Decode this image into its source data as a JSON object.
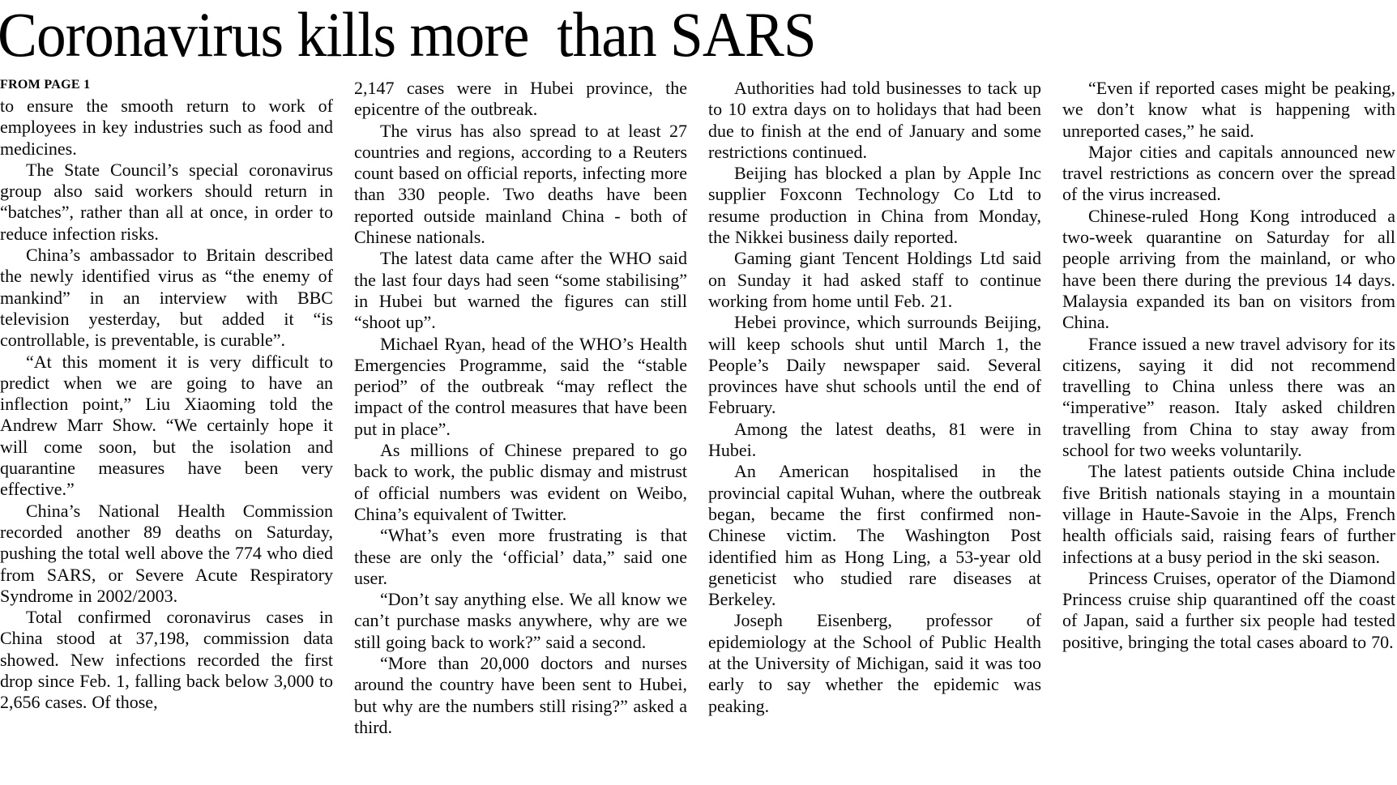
{
  "article": {
    "headline": "Coronavirus kills more  than SARS",
    "kicker": "FROM PAGE 1",
    "columns": [
      {
        "paragraphs": [
          {
            "indent": false,
            "text": "to ensure the smooth return to work of employees in key industries such as food and medicines."
          },
          {
            "indent": true,
            "text": "The State Council’s special coronavirus group also said workers should return in “batches”, rather than all at once, in order to reduce infection risks."
          },
          {
            "indent": true,
            "text": "China’s ambassador to Britain described the newly identified virus as “the enemy of mankind” in an interview with BBC television yesterday, but added it “is controllable, is preventable, is curable”."
          },
          {
            "indent": true,
            "text": "“At this moment it is very difficult to predict when we are going to have an inflection point,” Liu Xiaoming told the Andrew Marr Show. “We certainly hope it will come soon, but the isolation and quarantine measures have been very effective.”"
          },
          {
            "indent": true,
            "text": "China’s National Health Commission recorded another 89 deaths on Saturday, pushing the total well above the 774 who died from SARS, or Severe Acute Respiratory Syndrome in 2002/2003."
          },
          {
            "indent": true,
            "text": "Total confirmed coronavirus cases in China stood at 37,198, commission data showed. New infections recorded the first drop since Feb. 1, falling back below 3,000 to 2,656 cases. Of those,"
          }
        ]
      },
      {
        "paragraphs": [
          {
            "indent": false,
            "text": "2,147 cases were in Hubei province, the epicentre of the outbreak."
          },
          {
            "indent": true,
            "text": "The virus has also spread to at least 27 countries and regions, according to a Reuters count based on official reports, infecting more than 330 people. Two deaths have been reported outside mainland China - both of Chinese nationals."
          },
          {
            "indent": true,
            "text": "The latest data came after the WHO said the last four days had seen “some stabilising” in Hubei but warned the figures can still “shoot up”."
          },
          {
            "indent": true,
            "text": "Michael Ryan, head of the WHO’s Health Emergencies Programme, said the “stable period” of the outbreak “may reflect the impact of the control measures that have been put in place”."
          },
          {
            "indent": true,
            "text": "As millions of Chinese prepared to go back to work, the public dismay and mistrust of official numbers was evident on Weibo, China’s equivalent of Twitter."
          },
          {
            "indent": true,
            "text": "“What’s even more frustrating is that these are only the ‘official’ data,” said one user."
          },
          {
            "indent": true,
            "text": "“Don’t say anything else. We all know we can’t purchase masks anywhere, why are we still going back to work?” said a second."
          },
          {
            "indent": true,
            "text": "“More than 20,000 doctors and nurses around the country have been sent to Hubei, but why are the numbers still rising?” asked a third."
          }
        ]
      },
      {
        "paragraphs": [
          {
            "indent": true,
            "text": "Authorities had told businesses to tack up to 10 extra days on to holidays that had been due to finish at the end of January and some restrictions continued."
          },
          {
            "indent": true,
            "text": "Beijing has blocked a plan by Apple Inc supplier Foxconn Technology Co Ltd to resume production in China from Monday, the Nikkei business daily reported."
          },
          {
            "indent": true,
            "text": "Gaming giant Tencent Holdings Ltd said on Sunday it had asked staff to continue working from home until Feb. 21."
          },
          {
            "indent": true,
            "text": "Hebei province, which surrounds Beijing, will keep schools shut until March 1, the People’s Daily newspaper said. Several provinces have shut schools until the end of February."
          },
          {
            "indent": true,
            "text": "Among the latest deaths, 81 were in Hubei."
          },
          {
            "indent": true,
            "text": "An American hospitalised in the provincial capital Wuhan, where the outbreak began, became the first confirmed non-Chinese victim. The Washington Post identified him as Hong Ling, a 53-year old geneticist who studied rare diseases at Berkeley."
          },
          {
            "indent": true,
            "text": "Joseph Eisenberg, professor of epidemiology at the School of Public Health at the University of Michigan, said it was too early to say whether the epidemic was peaking."
          }
        ]
      },
      {
        "paragraphs": [
          {
            "indent": true,
            "text": "“Even if reported cases might be peaking, we don’t know what is happening with unreported cases,” he said."
          },
          {
            "indent": true,
            "text": "Major cities and capitals announced new travel restrictions as concern over the spread of the virus increased."
          },
          {
            "indent": true,
            "text": "Chinese-ruled Hong Kong introduced a two-week quarantine on Saturday for all people arriving from the mainland, or who have been there during the previous 14 days. Malaysia expanded its ban on visitors from China."
          },
          {
            "indent": true,
            "text": "France issued a new travel advisory for its citizens, saying it did not recommend travelling to China unless there was an “imperative” reason. Italy asked children travelling from China to stay away from school for two weeks voluntarily."
          },
          {
            "indent": true,
            "text": "The latest patients outside China include five British nationals staying in a mountain village in Haute-Savoie in the Alps, French health officials said, raising fears of further infections at a busy period in the ski season."
          },
          {
            "indent": true,
            "text": "Princess Cruises, operator of the Diamond Princess cruise ship quarantined off the coast of Japan, said a further six people had tested positive, bringing the total cases aboard to 70."
          }
        ]
      }
    ]
  }
}
